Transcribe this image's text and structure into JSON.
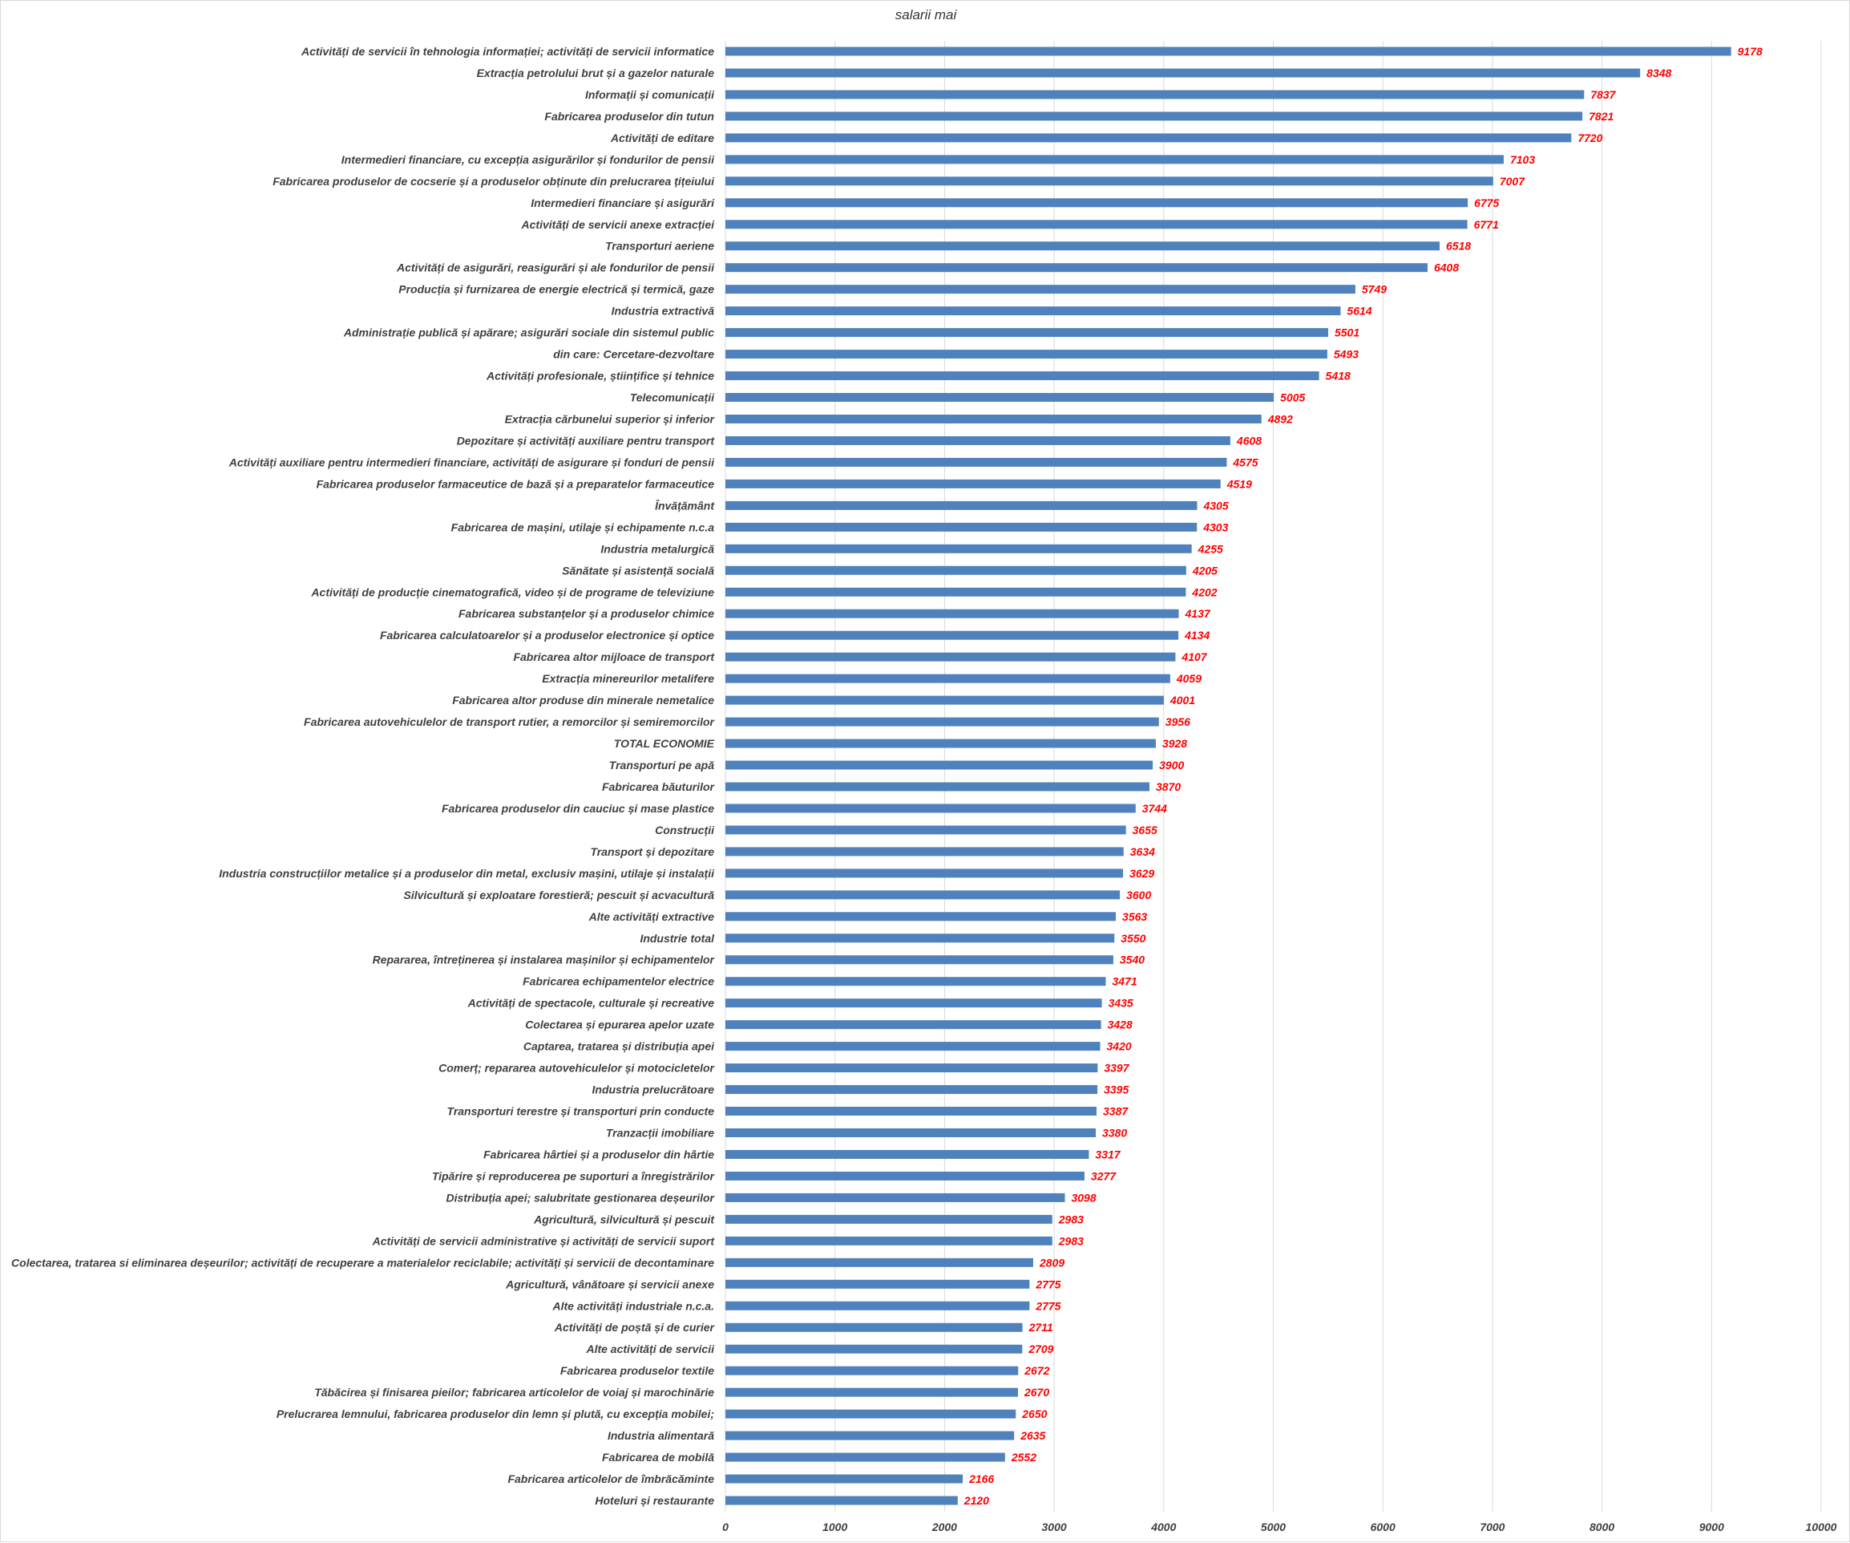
{
  "chart_data": {
    "type": "bar",
    "orientation": "horizontal",
    "title": "salarii mai",
    "xlim": [
      0,
      10000
    ],
    "x_ticks": [
      0,
      1000,
      2000,
      3000,
      4000,
      5000,
      6000,
      7000,
      8000,
      9000,
      10000
    ],
    "grid": "vertical",
    "legend": "none",
    "bar_color": "#4f81bd",
    "label_color": "#ff0000",
    "categories": [
      "Activități de servicii în tehnologia informației; activități de servicii informatice",
      "Extracția petrolului brut și a gazelor naturale",
      "Informații și comunicații",
      "Fabricarea produselor din tutun",
      "Activități de editare",
      "Intermedieri financiare, cu excepția asigurărilor și fondurilor de pensii",
      "Fabricarea produselor de cocserie și a produselor obținute din prelucrarea țițeiului",
      "Intermedieri financiare și asigurări",
      "Activități de servicii anexe extracției",
      "Transporturi aeriene",
      "Activități de asigurări, reasigurări și ale fondurilor de pensii",
      "Producția și furnizarea de energie electrică și termică, gaze",
      "Industria extractivă",
      "Administrație publică și apărare; asigurări sociale din sistemul public",
      "din care: Cercetare-dezvoltare",
      "Activități profesionale, științifice și tehnice",
      "Telecomunicații",
      "Extracția cărbunelui superior și inferior",
      "Depozitare și activități auxiliare pentru transport",
      "Activități auxiliare pentru intermedieri financiare, activități de asigurare și fonduri de pensii",
      "Fabricarea produselor farmaceutice de bază și a preparatelor farmaceutice",
      "Învățământ",
      "Fabricarea de mașini, utilaje și echipamente n.c.a",
      "Industria metalurgică",
      "Sănătate și asistență socială",
      "Activități de producție cinematografică, video și de programe de televiziune",
      "Fabricarea substanțelor și a produselor chimice",
      "Fabricarea calculatoarelor și a produselor electronice și optice",
      "Fabricarea altor mijloace de transport",
      "Extracția minereurilor metalifere",
      "Fabricarea altor produse din minerale nemetalice",
      "Fabricarea autovehiculelor de transport rutier, a remorcilor și semiremorcilor",
      "TOTAL ECONOMIE",
      "Transporturi pe apă",
      "Fabricarea băuturilor",
      "Fabricarea produselor din cauciuc și mase plastice",
      "Construcții",
      "Transport și depozitare",
      "Industria construcțiilor metalice și a produselor din metal, exclusiv mașini, utilaje și instalații",
      "Silvicultură și exploatare forestieră; pescuit și acvacultură",
      "Alte activități extractive",
      "Industrie total",
      "Repararea, întreținerea și instalarea mașinilor și echipamentelor",
      "Fabricarea echipamentelor  electrice",
      "Activități de spectacole, culturale și recreative",
      "Colectarea și epurarea apelor uzate",
      "Captarea, tratarea și distribuția apei",
      "Comerț; repararea autovehiculelor și motocicletelor",
      "Industria prelucrătoare",
      "Transporturi terestre și transporturi prin conducte",
      "Tranzacții imobiliare",
      "Fabricarea hârtiei și a produselor din hârtie",
      "Tipărire și reproducerea pe suporturi a înregistrărilor",
      "Distribuția apei; salubritate gestionarea deșeurilor",
      "Agricultură, silvicultură și pescuit",
      "Activități de servicii administrative și activități de servicii suport",
      "Colectarea, tratarea si eliminarea deșeurilor; activități de recuperare a materialelor reciclabile; activități și servicii de decontaminare",
      "Agricultură, vânătoare și servicii anexe",
      "Alte activități industriale n.c.a.",
      "Activități de poștă și de curier",
      "Alte activități de servicii",
      "Fabricarea produselor textile",
      "Tăbăcirea și finisarea pieilor; fabricarea articolelor de voiaj și marochinărie",
      "Prelucrarea lemnului, fabricarea produselor din lemn și plută, cu excepția mobilei;",
      "Industria alimentară",
      "Fabricarea de mobilă",
      "Fabricarea articolelor de îmbrăcăminte",
      "Hoteluri și restaurante"
    ],
    "values": [
      9178,
      8348,
      7837,
      7821,
      7720,
      7103,
      7007,
      6775,
      6771,
      6518,
      6408,
      5749,
      5614,
      5501,
      5493,
      5418,
      5005,
      4892,
      4608,
      4575,
      4519,
      4305,
      4303,
      4255,
      4205,
      4202,
      4137,
      4134,
      4107,
      4059,
      4001,
      3956,
      3928,
      3900,
      3870,
      3744,
      3655,
      3634,
      3629,
      3600,
      3563,
      3550,
      3540,
      3471,
      3435,
      3428,
      3420,
      3397,
      3395,
      3387,
      3380,
      3317,
      3277,
      3098,
      2983,
      2983,
      2809,
      2775,
      2775,
      2711,
      2709,
      2672,
      2670,
      2650,
      2635,
      2552,
      2166,
      2120
    ]
  }
}
